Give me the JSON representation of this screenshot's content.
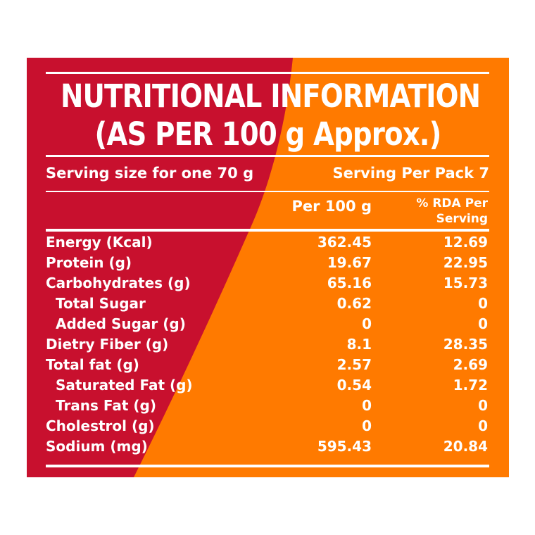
{
  "label": {
    "colors": {
      "red": "#c8102e",
      "orange": "#ff7a00",
      "text": "#ffffff"
    },
    "title_line1": "NUTRITIONAL INFORMATION",
    "title_line2": "(AS PER 100 g Approx.)",
    "serving_size": "Serving size for one 70 g",
    "serving_per_pack": "Serving Per Pack 7",
    "col_per100": "Per 100 g",
    "col_rda_line1": "% RDA Per",
    "col_rda_line2": "Serving",
    "rows": [
      {
        "name": "Energy (Kcal)",
        "per100": "362.45",
        "rda": "12.69"
      },
      {
        "name": "Protein (g)",
        "per100": "19.67",
        "rda": "22.95"
      },
      {
        "name": "Carbohydrates (g)",
        "per100": "65.16",
        "rda": "15.73"
      },
      {
        "name": "Total Sugar",
        "per100": "0.62",
        "rda": "0"
      },
      {
        "name": "Added Sugar (g)",
        "per100": "0",
        "rda": "0"
      },
      {
        "name": "Dietry Fiber (g)",
        "per100": "8.1",
        "rda": "28.35"
      },
      {
        "name": "Total fat (g)",
        "per100": "2.57",
        "rda": "2.69"
      },
      {
        "name": "Saturated Fat (g)",
        "per100": "0.54",
        "rda": "1.72"
      },
      {
        "name": "Trans Fat (g)",
        "per100": "0",
        "rda": "0"
      },
      {
        "name": "Cholestrol (g)",
        "per100": "0",
        "rda": "0"
      },
      {
        "name": "Sodium (mg)",
        "per100": "595.43",
        "rda": "20.84"
      }
    ]
  }
}
